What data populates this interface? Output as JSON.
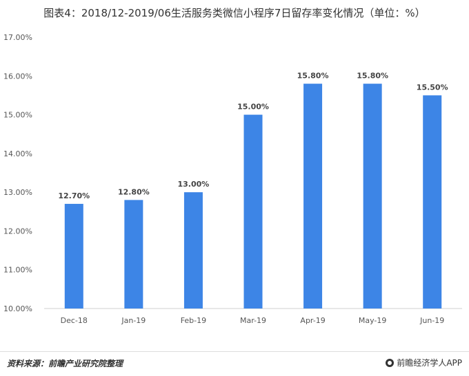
{
  "title": "图表4：2018/12-2019/06生活服务类微信小程序7日留存率变化情况（单位：%）",
  "footer": {
    "source": "资料来源：前瞻产业研究院整理",
    "brand": "前瞻经济学人APP",
    "brand_icon": "qianzhan-logo-icon"
  },
  "colors": {
    "bar": "#3d85e6",
    "grid": "#e0e0e0",
    "axis": "#cfcfcf"
  },
  "chart_data": {
    "type": "bar",
    "title": "图表4：2018/12-2019/06生活服务类微信小程序7日留存率变化情况（单位：%）",
    "categories": [
      "Dec-18",
      "Jan-19",
      "Feb-19",
      "Mar-19",
      "Apr-19",
      "May-19",
      "Jun-19"
    ],
    "values": [
      12.7,
      12.8,
      13.0,
      15.0,
      15.8,
      15.8,
      15.5
    ],
    "value_labels": [
      "12.70%",
      "12.80%",
      "13.00%",
      "15.00%",
      "15.80%",
      "15.80%",
      "15.50%"
    ],
    "yticks": [
      "10.00%",
      "11.00%",
      "12.00%",
      "13.00%",
      "14.00%",
      "15.00%",
      "16.00%",
      "17.00%"
    ],
    "ylim": [
      10,
      17
    ],
    "xlabel": "",
    "ylabel": "",
    "grid": false,
    "legend": "none"
  }
}
